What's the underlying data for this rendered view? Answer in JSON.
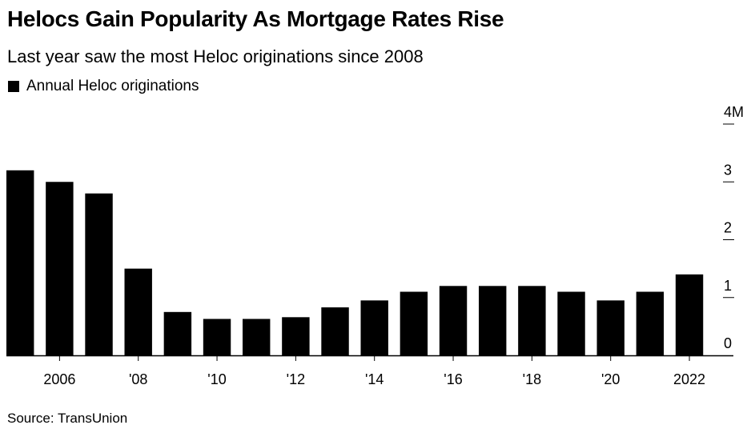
{
  "title": "Helocs Gain Popularity As Mortgage Rates Rise",
  "subtitle": "Last year saw the most Heloc originations since 2008",
  "source": "Source: TransUnion",
  "colors": {
    "bar": "#000000",
    "axis": "#000000"
  },
  "chart_data": {
    "type": "bar",
    "title": "Helocs Gain Popularity As Mortgage Rates Rise",
    "subtitle": "Last year saw the most Heloc originations since 2008",
    "xlabel": "",
    "ylabel": "",
    "legend": {
      "position": "top-left",
      "entries": [
        "Annual Heloc originations"
      ]
    },
    "grid": false,
    "y_axis_side": "right",
    "categories": [
      "2005",
      "2006",
      "2007",
      "2008",
      "2009",
      "2010",
      "2011",
      "2012",
      "2013",
      "2014",
      "2015",
      "2016",
      "2017",
      "2018",
      "2019",
      "2020",
      "2021",
      "2022"
    ],
    "series": [
      {
        "name": "Annual Heloc originations",
        "values": [
          3.2,
          3.0,
          2.8,
          1.5,
          0.75,
          0.63,
          0.63,
          0.66,
          0.83,
          0.95,
          1.1,
          1.2,
          1.2,
          1.2,
          1.1,
          0.95,
          1.1,
          1.4
        ]
      }
    ],
    "ylim": [
      0,
      4
    ],
    "y_ticks": [
      {
        "value": 0,
        "label": "0"
      },
      {
        "value": 1,
        "label": "1"
      },
      {
        "value": 2,
        "label": "2"
      },
      {
        "value": 3,
        "label": "3"
      },
      {
        "value": 4,
        "label": "4M"
      }
    ],
    "x_tick_labels": [
      {
        "category": "2006",
        "label": "2006"
      },
      {
        "category": "2008",
        "label": "'08"
      },
      {
        "category": "2010",
        "label": "'10"
      },
      {
        "category": "2012",
        "label": "'12"
      },
      {
        "category": "2014",
        "label": "'14"
      },
      {
        "category": "2016",
        "label": "'16"
      },
      {
        "category": "2018",
        "label": "'18"
      },
      {
        "category": "2020",
        "label": "'20"
      },
      {
        "category": "2022",
        "label": "2022"
      }
    ]
  }
}
